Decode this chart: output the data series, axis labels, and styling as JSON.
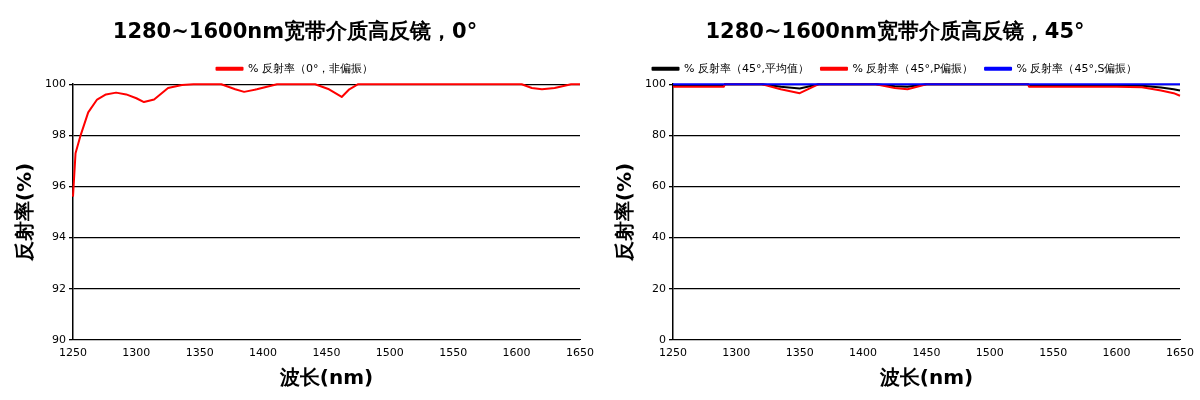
{
  "chart_data": [
    {
      "type": "line",
      "title": "1280~1600nm宽带介质高反镜，0°",
      "xlabel": "波长(nm)",
      "ylabel": "反射率(%)",
      "x": [
        1250,
        1252,
        1256,
        1262,
        1269,
        1276,
        1284,
        1292,
        1300,
        1306,
        1314,
        1325,
        1336,
        1345,
        1367,
        1378,
        1385,
        1395,
        1411,
        1441,
        1452,
        1462,
        1468,
        1475,
        1604,
        1612,
        1620,
        1630,
        1643,
        1650
      ],
      "series": [
        {
          "name": "% 反射率（0°，非偏振）",
          "color": "#ff0000",
          "values": [
            95.6,
            97.3,
            98.0,
            98.9,
            99.4,
            99.6,
            99.67,
            99.6,
            99.45,
            99.3,
            99.4,
            99.85,
            99.97,
            100,
            100,
            99.8,
            99.7,
            99.8,
            100,
            100,
            99.8,
            99.5,
            99.8,
            100,
            100,
            99.85,
            99.8,
            99.85,
            100,
            100
          ]
        }
      ],
      "xlim": [
        1250,
        1650
      ],
      "xticks": [
        1250,
        1300,
        1350,
        1400,
        1450,
        1500,
        1550,
        1600,
        1650
      ],
      "ylim": [
        90,
        100
      ],
      "yticks": [
        90,
        92,
        94,
        96,
        98,
        100
      ],
      "grid": "y",
      "legend": "top",
      "marker": "none",
      "line_style": "solid"
    },
    {
      "type": "line",
      "title": "1280~1600nm宽带介质高反镜，45°",
      "xlabel": "波长(nm)",
      "ylabel": "反射率(%)",
      "x": [
        1250,
        1290,
        1291,
        1320,
        1335,
        1350,
        1365,
        1410,
        1425,
        1435,
        1450,
        1530,
        1531,
        1600,
        1620,
        1635,
        1645,
        1650
      ],
      "series": [
        {
          "name": "% 反射率（45°,平均值）",
          "color": "#000000",
          "values": [
            99.5,
            99.5,
            100,
            100,
            99,
            98.3,
            100,
            100,
            99.2,
            99,
            100,
            100,
            99.5,
            99.5,
            99.4,
            98.7,
            98,
            97.5
          ]
        },
        {
          "name": "% 反射率（45°,P偏振）",
          "color": "#ff0000",
          "values": [
            99,
            99,
            100,
            100,
            98,
            96.5,
            100,
            100,
            98.5,
            98,
            100,
            100,
            99,
            99,
            98.8,
            97.5,
            96.5,
            95.5
          ]
        },
        {
          "name": "% 反射率（45°,S偏振）",
          "color": "#0000ff",
          "values": [
            100,
            100,
            100,
            100,
            100,
            100,
            100,
            100,
            100,
            100,
            100,
            100,
            100,
            100,
            100,
            100,
            100,
            100
          ]
        }
      ],
      "xlim": [
        1250,
        1650
      ],
      "xticks": [
        1250,
        1300,
        1350,
        1400,
        1450,
        1500,
        1550,
        1600,
        1650
      ],
      "ylim": [
        0,
        100
      ],
      "yticks": [
        0,
        20,
        40,
        60,
        80,
        100
      ],
      "grid": "y",
      "legend": "top",
      "marker": "none",
      "line_style": "solid"
    }
  ]
}
